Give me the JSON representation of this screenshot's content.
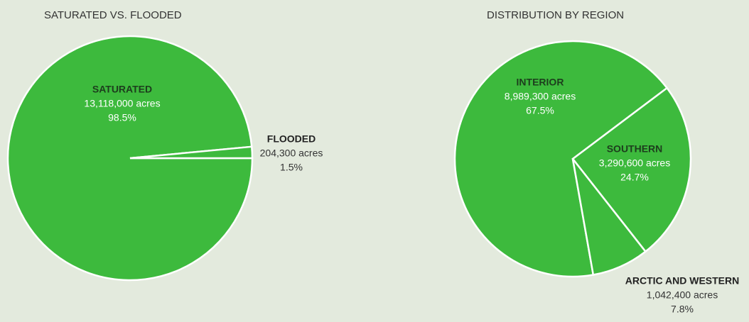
{
  "chart_data": [
    {
      "type": "pie",
      "title": "SATURATED VS. FLOODED",
      "categories": [
        "SATURATED",
        "FLOODED"
      ],
      "values": [
        98.5,
        1.5
      ],
      "value_labels": [
        "98.5%",
        "1.5%"
      ],
      "area_labels": [
        "13,118,000 acres",
        "204,300 acres"
      ],
      "color": "#3dba3d"
    },
    {
      "type": "pie",
      "title": "DISTRIBUTION BY REGION",
      "categories": [
        "INTERIOR",
        "SOUTHERN",
        "ARCTIC AND WESTERN"
      ],
      "values": [
        67.5,
        24.7,
        7.8
      ],
      "value_labels": [
        "67.5%",
        "24.7%",
        "7.8%"
      ],
      "area_labels": [
        "8,989,300 acres",
        "3,290,600 acres",
        "1,042,400 acres"
      ],
      "color": "#3dba3d"
    }
  ]
}
